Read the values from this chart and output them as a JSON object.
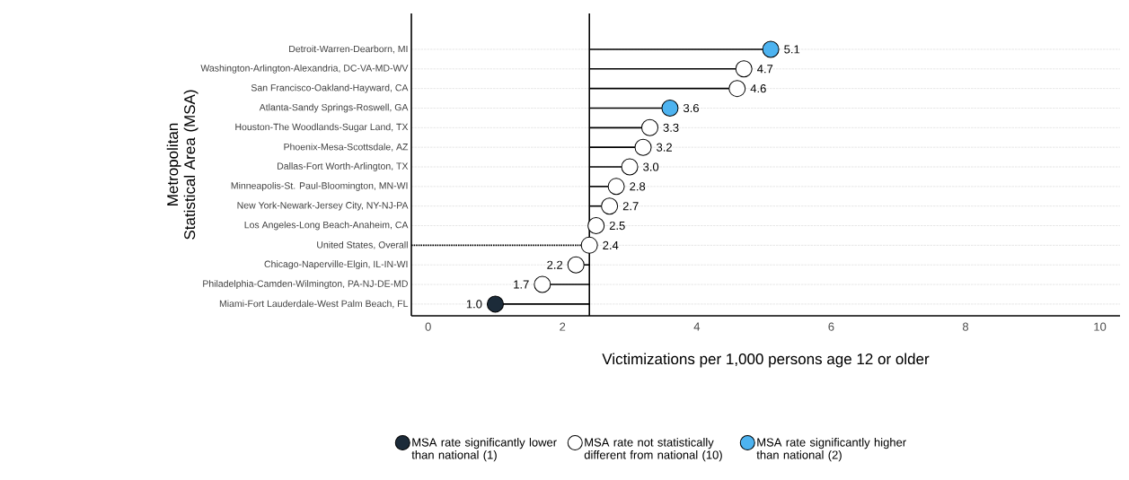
{
  "chart_data": {
    "type": "lollipop",
    "orientation": "horizontal",
    "xlabel": "Victimizations per 1,000 persons age 12 or older",
    "ylabel": "Metropolitan Statistical Area (MSA)",
    "categories": [
      "Detroit-Warren-Dearborn, MI",
      "Washington-Arlington-Alexandria, DC-VA-MD-WV",
      "San Francisco-Oakland-Hayward, CA",
      "Atlanta-Sandy Springs-Roswell, GA",
      "Houston-The Woodlands-Sugar Land, TX",
      "Phoenix-Mesa-Scottsdale, AZ",
      "Dallas-Fort Worth-Arlington, TX",
      "Minneapolis-St. Paul-Bloomington, MN-WI",
      "New York-Newark-Jersey City, NY-NJ-PA",
      "Los Angeles-Long Beach-Anaheim, CA",
      "United States, Overall",
      "Chicago-Naperville-Elgin, IL-IN-WI",
      "Philadelphia-Camden-Wilmington, PA-NJ-DE-MD",
      "Miami-Fort Lauderdale-West Palm Beach, FL"
    ],
    "series": [
      {
        "name": "MSA rate significantly lower than national (1)",
        "color": "#1c2b39",
        "values": [
          null,
          null,
          null,
          null,
          null,
          null,
          null,
          null,
          null,
          null,
          null,
          null,
          null,
          1.0
        ],
        "value_labels": [
          null,
          null,
          null,
          null,
          null,
          null,
          null,
          null,
          null,
          null,
          null,
          null,
          null,
          "1.0"
        ]
      },
      {
        "name": "MSA rate not statistically different from national (10)",
        "color": "#ffffff",
        "values": [
          null,
          4.7,
          4.6,
          null,
          3.3,
          3.2,
          3.0,
          2.8,
          2.7,
          2.5,
          null,
          2.2,
          1.7,
          null
        ],
        "value_labels": [
          null,
          "4.7",
          "4.6",
          null,
          "3.3",
          "3.2",
          "3.0",
          "2.8",
          "2.7",
          "2.5",
          null,
          "2.2",
          "1.7",
          null
        ]
      },
      {
        "name": "MSA rate significantly higher than national (2)",
        "color": "#4db3f0",
        "values": [
          5.1,
          null,
          null,
          3.6,
          null,
          null,
          null,
          null,
          null,
          null,
          null,
          null,
          null,
          null
        ],
        "value_labels": [
          "5.1",
          null,
          null,
          "3.6",
          null,
          null,
          null,
          null,
          null,
          null,
          null,
          null,
          null,
          null
        ]
      },
      {
        "color": "#ffffff",
        "line_style": "dotted",
        "values": [
          null,
          null,
          null,
          null,
          null,
          null,
          null,
          null,
          null,
          null,
          2.4,
          null,
          null,
          null
        ],
        "value_labels": [
          null,
          null,
          null,
          null,
          null,
          null,
          null,
          null,
          null,
          null,
          "2.4",
          null,
          null,
          null
        ]
      }
    ],
    "ref_lines": [
      {
        "axis": "x",
        "value": 2.4
      }
    ],
    "xlim": [
      -0.25,
      10.3
    ],
    "xticks": [
      0,
      2,
      4,
      6,
      8,
      10
    ],
    "grid": "y",
    "marker": "circle",
    "legend": "bottom"
  }
}
